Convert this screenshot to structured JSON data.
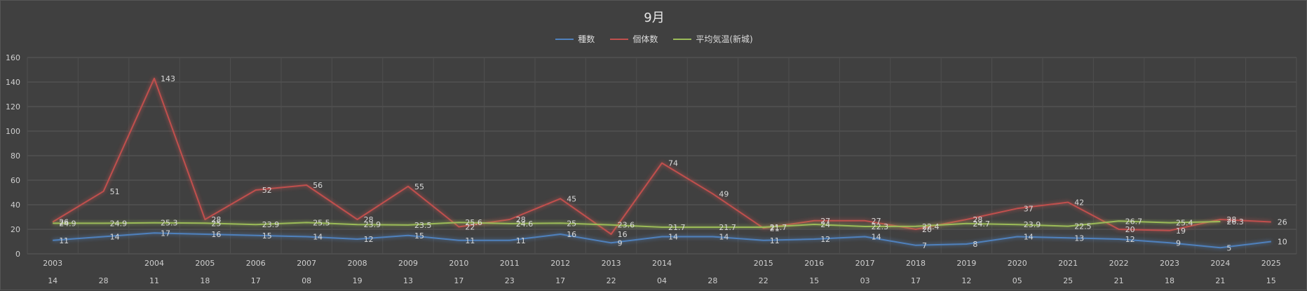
{
  "chart_data": {
    "type": "line",
    "title": "9月",
    "ylim": [
      0,
      160
    ],
    "yticks": [
      0,
      20,
      40,
      60,
      80,
      100,
      120,
      140,
      160
    ],
    "grid": true,
    "legend": "top-center",
    "categories": [
      {
        "year": "2003",
        "day": "14"
      },
      {
        "year": "",
        "day": "28"
      },
      {
        "year": "2004",
        "day": "11"
      },
      {
        "year": "2005",
        "day": "18"
      },
      {
        "year": "2006",
        "day": "17"
      },
      {
        "year": "2007",
        "day": "08"
      },
      {
        "year": "2008",
        "day": "19"
      },
      {
        "year": "2009",
        "day": "13"
      },
      {
        "year": "2010",
        "day": "17"
      },
      {
        "year": "2011",
        "day": "23"
      },
      {
        "year": "2012",
        "day": "17"
      },
      {
        "year": "2013",
        "day": "22"
      },
      {
        "year": "2014",
        "day": "04"
      },
      {
        "year": "",
        "day": "28"
      },
      {
        "year": "2015",
        "day": "22"
      },
      {
        "year": "2016",
        "day": "15"
      },
      {
        "year": "2017",
        "day": "03"
      },
      {
        "year": "2018",
        "day": "17"
      },
      {
        "year": "2019",
        "day": "12"
      },
      {
        "year": "2020",
        "day": "05"
      },
      {
        "year": "2021",
        "day": "25"
      },
      {
        "year": "2022",
        "day": "21"
      },
      {
        "year": "2023",
        "day": "18"
      },
      {
        "year": "2024",
        "day": "21"
      },
      {
        "year": "2025",
        "day": "15"
      }
    ],
    "series": [
      {
        "name": "種数",
        "color": "#4f81bd",
        "values": [
          11,
          14,
          17,
          16,
          15,
          14,
          12,
          15,
          11,
          11,
          16,
          9,
          14,
          14,
          11,
          12,
          14,
          7,
          8,
          14,
          13,
          12,
          9,
          5,
          10
        ]
      },
      {
        "name": "個体数",
        "color": "#c0504d",
        "values": [
          26,
          51,
          143,
          28,
          52,
          56,
          28,
          55,
          22,
          28,
          45,
          16,
          74,
          49,
          21,
          27,
          27,
          20,
          28,
          37,
          42,
          20,
          19,
          28,
          26
        ]
      },
      {
        "name": "平均気温(新城)",
        "color": "#9bbb59",
        "values": [
          24.9,
          24.9,
          25.3,
          25.0,
          23.9,
          25.5,
          23.9,
          23.5,
          25.6,
          24.6,
          25.0,
          23.6,
          21.7,
          21.7,
          21.7,
          24.0,
          22.3,
          22.4,
          24.7,
          23.9,
          22.5,
          26.7,
          25.4,
          26.3,
          null
        ]
      }
    ]
  }
}
